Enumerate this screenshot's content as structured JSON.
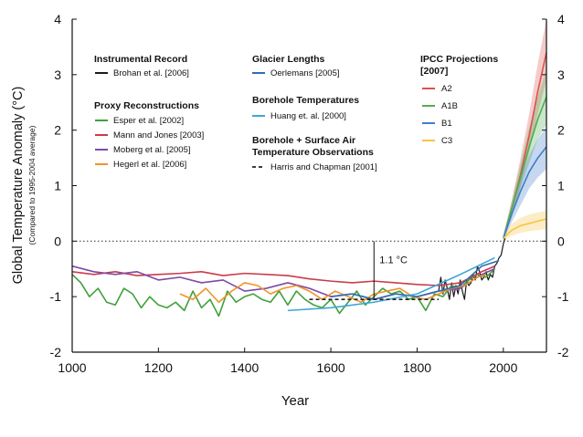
{
  "chart_data": {
    "type": "line",
    "xlabel": "Year",
    "ylabel": "Global Temperature Anomaly (°C)",
    "ylabel_sub": "(Compared to 1995-2004 average)",
    "xlim": [
      1000,
      2100
    ],
    "ylim": [
      -2,
      4
    ],
    "x_ticks": [
      "1000",
      "1200",
      "1400",
      "1600",
      "1800",
      "2000"
    ],
    "y_ticks": [
      "-2",
      "-1",
      "0",
      "1",
      "2",
      "3",
      "4"
    ],
    "annotation": "1.1 °C",
    "legend_groups": {
      "instrumental": "Instrumental Record",
      "proxy": "Proxy Reconstructions",
      "glacier": "Glacier Lengths",
      "borehole": "Borehole Temperatures",
      "borehole_air": [
        "Borehole + Surface Air",
        "Temperature Observations"
      ],
      "ipcc": [
        "IPCC  Projections",
        "[2007]"
      ]
    },
    "series": [
      {
        "name": "Brohan et al.  [2006]",
        "color": "#1a1a1a",
        "x": [
          1850,
          1855,
          1860,
          1865,
          1870,
          1875,
          1880,
          1885,
          1890,
          1895,
          1900,
          1905,
          1910,
          1915,
          1920,
          1925,
          1930,
          1935,
          1940,
          1945,
          1950,
          1955,
          1960,
          1965,
          1970,
          1975,
          1980,
          1985,
          1990,
          1995,
          2000,
          2004
        ],
        "y": [
          -0.9,
          -0.65,
          -0.95,
          -0.7,
          -0.85,
          -1.05,
          -0.75,
          -1.0,
          -0.8,
          -0.95,
          -0.7,
          -0.9,
          -1.05,
          -0.7,
          -0.8,
          -0.75,
          -0.6,
          -0.7,
          -0.45,
          -0.55,
          -0.7,
          -0.65,
          -0.55,
          -0.7,
          -0.6,
          -0.65,
          -0.45,
          -0.4,
          -0.3,
          -0.25,
          -0.05,
          0.05
        ]
      },
      {
        "name": "Esper et al.  [2002]",
        "color": "#3fa13a",
        "x": [
          1000,
          1020,
          1040,
          1060,
          1080,
          1100,
          1120,
          1140,
          1160,
          1180,
          1200,
          1220,
          1240,
          1260,
          1280,
          1300,
          1320,
          1340,
          1360,
          1380,
          1400,
          1420,
          1440,
          1460,
          1480,
          1500,
          1520,
          1540,
          1560,
          1580,
          1600,
          1620,
          1640,
          1660,
          1680,
          1700,
          1720,
          1740,
          1760,
          1780,
          1800,
          1820,
          1840,
          1860,
          1880,
          1900,
          1920,
          1940,
          1960,
          1980
        ],
        "y": [
          -0.6,
          -0.75,
          -1.0,
          -0.85,
          -1.1,
          -1.15,
          -0.85,
          -0.95,
          -1.2,
          -1.0,
          -1.15,
          -1.2,
          -1.1,
          -1.25,
          -0.9,
          -1.2,
          -1.05,
          -1.35,
          -0.9,
          -1.1,
          -1.0,
          -0.95,
          -1.05,
          -1.1,
          -0.9,
          -1.15,
          -0.9,
          -1.05,
          -1.15,
          -1.2,
          -1.05,
          -1.3,
          -1.1,
          -0.9,
          -1.15,
          -1.0,
          -0.85,
          -0.95,
          -0.9,
          -1.05,
          -1.0,
          -1.25,
          -0.95,
          -1.0,
          -0.8,
          -0.85,
          -0.7,
          -0.6,
          -0.65,
          -0.5
        ]
      },
      {
        "name": "Mann and Jones  [2003]",
        "color": "#c93c4b",
        "x": [
          1000,
          1050,
          1100,
          1150,
          1200,
          1250,
          1300,
          1350,
          1400,
          1450,
          1500,
          1550,
          1600,
          1650,
          1700,
          1750,
          1800,
          1850,
          1900,
          1950,
          1980
        ],
        "y": [
          -0.55,
          -0.6,
          -0.55,
          -0.62,
          -0.6,
          -0.58,
          -0.55,
          -0.62,
          -0.58,
          -0.6,
          -0.62,
          -0.68,
          -0.72,
          -0.75,
          -0.72,
          -0.75,
          -0.78,
          -0.8,
          -0.75,
          -0.55,
          -0.45
        ]
      },
      {
        "name": "Moberg et al.  [2005]",
        "color": "#7d4aa8",
        "x": [
          1000,
          1050,
          1100,
          1150,
          1200,
          1250,
          1300,
          1350,
          1400,
          1450,
          1500,
          1550,
          1600,
          1650,
          1700,
          1750,
          1800,
          1850,
          1900,
          1950,
          1979
        ],
        "y": [
          -0.45,
          -0.55,
          -0.6,
          -0.55,
          -0.7,
          -0.65,
          -0.75,
          -0.7,
          -0.9,
          -0.85,
          -0.75,
          -0.85,
          -1.0,
          -0.95,
          -1.05,
          -0.95,
          -1.0,
          -0.9,
          -0.85,
          -0.6,
          -0.5
        ]
      },
      {
        "name": "Hegerl et al.  [2006]",
        "color": "#f0932b",
        "x": [
          1250,
          1280,
          1310,
          1340,
          1370,
          1400,
          1430,
          1460,
          1490,
          1520,
          1550,
          1580,
          1610,
          1640,
          1670,
          1700,
          1730,
          1760,
          1790,
          1820,
          1850,
          1880,
          1910,
          1940,
          1960
        ],
        "y": [
          -0.95,
          -1.05,
          -0.85,
          -1.1,
          -0.9,
          -0.75,
          -0.8,
          -0.95,
          -0.85,
          -0.8,
          -0.9,
          -1.05,
          -0.9,
          -1.0,
          -1.1,
          -0.95,
          -0.9,
          -0.85,
          -1.0,
          -1.05,
          -0.95,
          -0.85,
          -0.8,
          -0.65,
          -0.6
        ]
      },
      {
        "name": "Oerlemans  [2005]",
        "color": "#2f6db5",
        "x": [
          1600,
          1650,
          1700,
          1750,
          1800,
          1850,
          1900,
          1950,
          1990
        ],
        "y": [
          -1.0,
          -0.95,
          -1.05,
          -0.95,
          -1.0,
          -0.9,
          -0.8,
          -0.45,
          -0.35
        ]
      },
      {
        "name": "Huang et. al.  [2000]",
        "color": "#3ea6d6",
        "x": [
          1500,
          1600,
          1700,
          1800,
          1900,
          1980
        ],
        "y": [
          -1.25,
          -1.2,
          -1.1,
          -0.95,
          -0.6,
          -0.3
        ]
      },
      {
        "name": "Harris and Chapman  [2001]",
        "color": "#222222",
        "dash": true,
        "x": [
          1550,
          1650,
          1750,
          1850
        ],
        "y": [
          -1.05,
          -1.05,
          -1.05,
          -1.05
        ]
      },
      {
        "name": "A2",
        "color": "#d9534f",
        "x": [
          2000,
          2020,
          2040,
          2060,
          2080,
          2100
        ],
        "y": [
          0.05,
          0.6,
          1.2,
          1.9,
          2.7,
          3.4
        ],
        "band_upper": [
          0.1,
          0.75,
          1.5,
          2.3,
          3.2,
          4.0
        ],
        "band_lower": [
          0.0,
          0.45,
          1.0,
          1.6,
          2.3,
          2.9
        ]
      },
      {
        "name": "A1B",
        "color": "#4caf50",
        "x": [
          2000,
          2020,
          2040,
          2060,
          2080,
          2100
        ],
        "y": [
          0.05,
          0.6,
          1.15,
          1.7,
          2.2,
          2.6
        ],
        "band_upper": [
          0.1,
          0.75,
          1.4,
          2.05,
          2.6,
          3.1
        ],
        "band_lower": [
          0.0,
          0.45,
          0.95,
          1.4,
          1.85,
          2.1
        ]
      },
      {
        "name": "B1",
        "color": "#3f7ec9",
        "x": [
          2000,
          2020,
          2040,
          2060,
          2080,
          2100
        ],
        "y": [
          0.05,
          0.5,
          0.9,
          1.25,
          1.5,
          1.7
        ],
        "band_upper": [
          0.1,
          0.65,
          1.15,
          1.55,
          1.85,
          2.05
        ],
        "band_lower": [
          0.0,
          0.35,
          0.65,
          0.95,
          1.15,
          1.3
        ]
      },
      {
        "name": "C3",
        "color": "#f5c542",
        "x": [
          2000,
          2020,
          2040,
          2060,
          2080,
          2100
        ],
        "y": [
          0.05,
          0.2,
          0.28,
          0.32,
          0.36,
          0.4
        ],
        "band_upper": [
          0.1,
          0.32,
          0.42,
          0.48,
          0.52,
          0.55
        ],
        "band_lower": [
          0.0,
          0.1,
          0.15,
          0.18,
          0.2,
          0.22
        ]
      }
    ]
  }
}
